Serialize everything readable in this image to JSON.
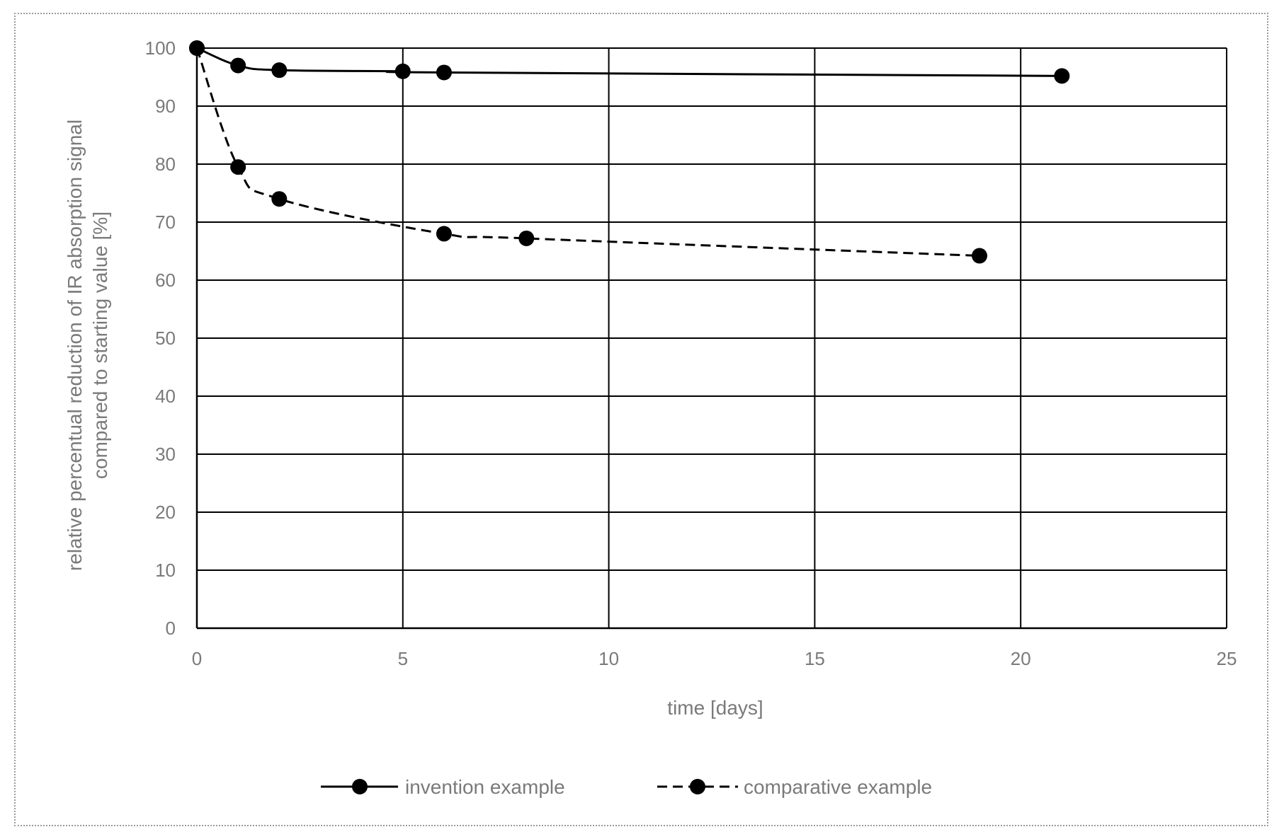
{
  "chart_data": {
    "type": "line",
    "xlabel": "time [days]",
    "ylabel_lines": [
      "relative percentual reduction of IR absorption signal",
      "compared to starting value [%]"
    ],
    "xlim": [
      0,
      25
    ],
    "ylim": [
      0,
      100
    ],
    "x_ticks": [
      0,
      5,
      10,
      15,
      20,
      25
    ],
    "y_ticks": [
      0,
      10,
      20,
      30,
      40,
      50,
      60,
      70,
      80,
      90,
      100
    ],
    "x_gridlines": true,
    "y_gridlines": true,
    "legend_position": "bottom",
    "series": [
      {
        "name": "invention example",
        "line_style": "solid",
        "color": "#000000",
        "x": [
          0,
          1,
          2,
          5,
          6,
          21
        ],
        "y": [
          100,
          97,
          96.2,
          96,
          95.8,
          95.2
        ]
      },
      {
        "name": "comparative example",
        "line_style": "dashed",
        "color": "#000000",
        "x": [
          0,
          1,
          2,
          6,
          8,
          19
        ],
        "y": [
          100,
          79.5,
          74,
          68,
          67.2,
          64.2
        ]
      }
    ]
  }
}
